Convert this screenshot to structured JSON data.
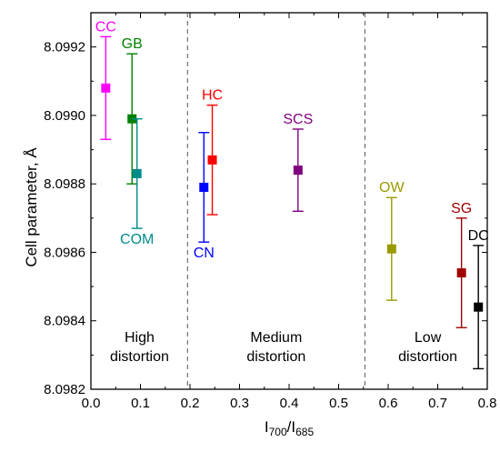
{
  "chart_data": {
    "type": "scatter",
    "xlabel": {
      "base": "I",
      "sub1": "700",
      "mid": "/I",
      "sub2": "685"
    },
    "ylabel": "Cell parameter, Å",
    "xlim": [
      0.0,
      0.8
    ],
    "ylim": [
      8.0982,
      8.0993
    ],
    "xticks": [
      "0.0",
      "0.1",
      "0.2",
      "0.3",
      "0.4",
      "0.5",
      "0.6",
      "0.7",
      "0.8"
    ],
    "yticks": [
      "8.0982",
      "8.0984",
      "8.0986",
      "8.0988",
      "8.0990",
      "8.0992"
    ],
    "grid": false,
    "separators_x": [
      0.195,
      0.553
    ],
    "regions": [
      {
        "lines": [
          "High",
          "distortion"
        ]
      },
      {
        "lines": [
          "Medium",
          "distortion"
        ]
      },
      {
        "lines": [
          "Low",
          "distortion"
        ]
      }
    ],
    "points": [
      {
        "label": "CC",
        "x": 0.03,
        "y": 8.09908,
        "err": 0.00015,
        "color": "#ff00ff"
      },
      {
        "label": "GB",
        "x": 0.083,
        "y": 8.09899,
        "err": 0.00019,
        "color": "#008000"
      },
      {
        "label": "COM",
        "x": 0.093,
        "y": 8.09883,
        "err": 0.00016,
        "color": "#008b8b"
      },
      {
        "label": "CN",
        "x": 0.228,
        "y": 8.09879,
        "err": 0.00016,
        "color": "#0000ff"
      },
      {
        "label": "HC",
        "x": 0.245,
        "y": 8.09887,
        "err": 0.00016,
        "color": "#ff0000"
      },
      {
        "label": "SCS",
        "x": 0.418,
        "y": 8.09884,
        "err": 0.00012,
        "color": "#800080"
      },
      {
        "label": "OW",
        "x": 0.607,
        "y": 8.09861,
        "err": 0.00015,
        "color": "#999900"
      },
      {
        "label": "SG",
        "x": 0.748,
        "y": 8.09854,
        "err": 0.00016,
        "color": "#a00000"
      },
      {
        "label": "DC",
        "x": 0.782,
        "y": 8.09844,
        "err": 0.00018,
        "color": "#000000"
      }
    ]
  }
}
